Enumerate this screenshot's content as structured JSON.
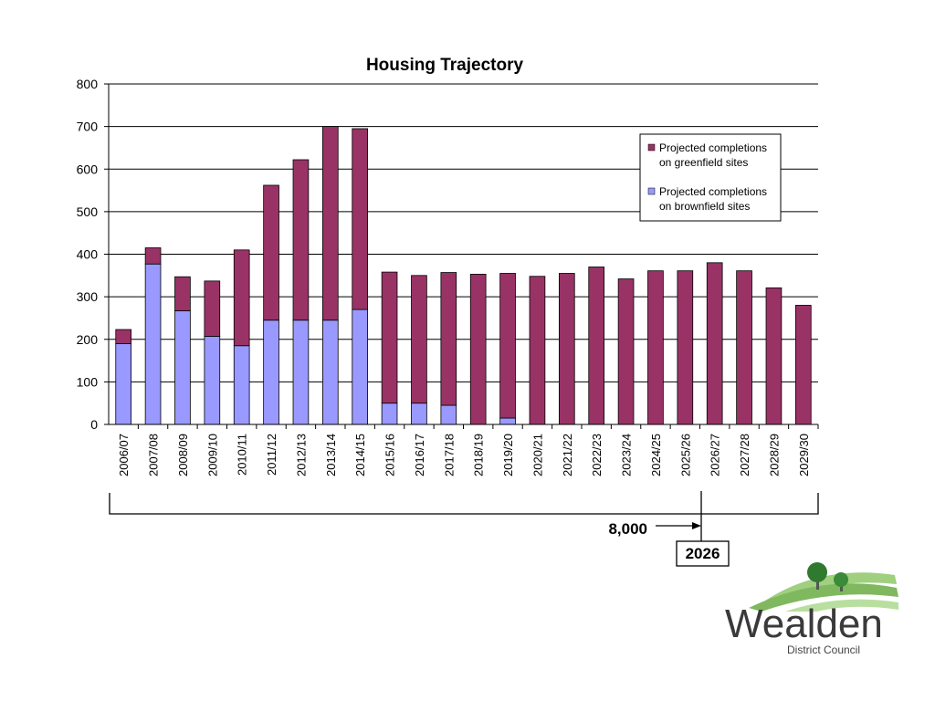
{
  "chart_data": {
    "type": "bar",
    "stacked": true,
    "title": "Housing Trajectory",
    "categories": [
      "2006/07",
      "2007/08",
      "2008/09",
      "2009/10",
      "2010/11",
      "2011/12",
      "2012/13",
      "2013/14",
      "2014/15",
      "2015/16",
      "2016/17",
      "2017/18",
      "2018/19",
      "2019/20",
      "2020/21",
      "2021/22",
      "2022/23",
      "2023/24",
      "2024/25",
      "2025/26",
      "2026/27",
      "2027/28",
      "2028/29",
      "2029/30"
    ],
    "series": [
      {
        "name": "Projected completions on brownfield sites",
        "color": "#9999ff",
        "values": [
          190,
          377,
          267,
          207,
          185,
          245,
          245,
          245,
          270,
          50,
          50,
          45,
          0,
          15,
          0,
          0,
          0,
          0,
          0,
          0,
          0,
          0,
          0,
          0
        ]
      },
      {
        "name": "Projected completions on greenfield sites",
        "color": "#993366",
        "values": [
          33,
          38,
          80,
          130,
          225,
          317,
          377,
          455,
          425,
          308,
          300,
          312,
          353,
          340,
          348,
          355,
          370,
          342,
          361,
          361,
          380,
          361,
          321,
          280
        ]
      }
    ],
    "ylim": [
      0,
      800
    ],
    "yticks": [
      0,
      100,
      200,
      300,
      400,
      500,
      600,
      700,
      800
    ],
    "grid": true,
    "legend_position": "top-right",
    "legend": [
      {
        "color": "#993366",
        "lines": [
          "Projected completions",
          "on greenfield sites"
        ]
      },
      {
        "color": "#9999ff",
        "lines": [
          "Projected completions",
          "on brownfield sites"
        ]
      }
    ],
    "annotations": {
      "total_label": "8,000",
      "year_label": "2026"
    }
  },
  "logo": {
    "name": "Wealden",
    "subtitle": "District Council",
    "colors": {
      "green": "#3a8a3a",
      "light_green": "#9fcf7f",
      "grey": "#8a8a8a"
    }
  }
}
